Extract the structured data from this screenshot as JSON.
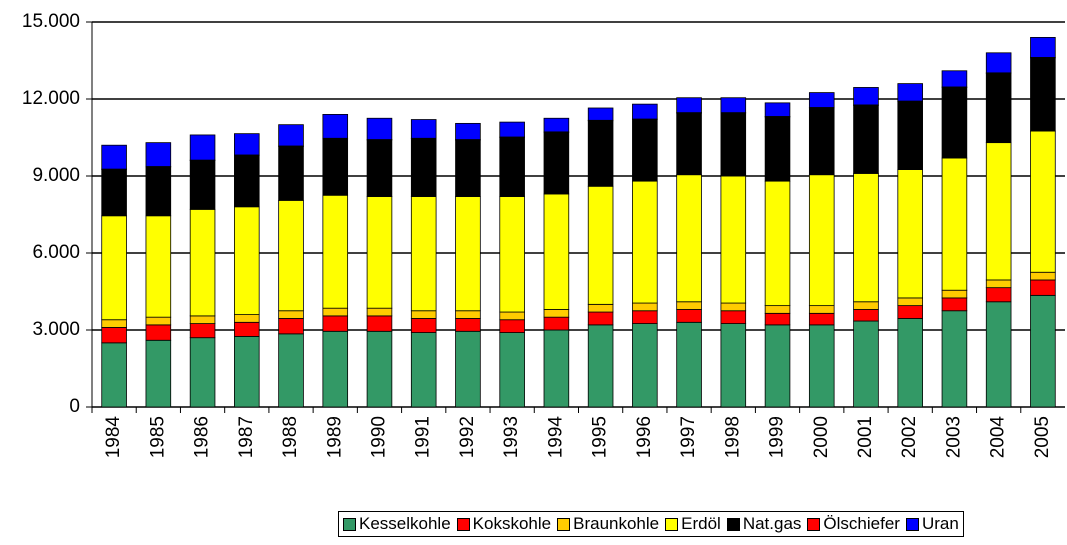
{
  "chart_data": {
    "type": "stacked_bar",
    "categories": [
      "1984",
      "1985",
      "1986",
      "1987",
      "1988",
      "1989",
      "1990",
      "1991",
      "1992",
      "1993",
      "1994",
      "1995",
      "1996",
      "1997",
      "1998",
      "1999",
      "2000",
      "2001",
      "2002",
      "2003",
      "2004",
      "2005"
    ],
    "series": [
      {
        "name": "Kesselkohle",
        "color": "#339966",
        "values": [
          2500,
          2600,
          2700,
          2750,
          2850,
          2950,
          2950,
          2900,
          2950,
          2900,
          3000,
          3200,
          3250,
          3300,
          3250,
          3200,
          3200,
          3350,
          3450,
          3750,
          4100,
          4350
        ]
      },
      {
        "name": "Kokskohle",
        "color": "#ff0000",
        "values": [
          600,
          600,
          550,
          550,
          600,
          600,
          600,
          550,
          500,
          500,
          500,
          500,
          500,
          500,
          500,
          450,
          450,
          450,
          500,
          500,
          550,
          600
        ]
      },
      {
        "name": "Braunkohle",
        "color": "#ffcc00",
        "values": [
          300,
          300,
          300,
          300,
          300,
          300,
          300,
          300,
          300,
          300,
          300,
          300,
          300,
          300,
          300,
          300,
          300,
          300,
          300,
          300,
          300,
          300
        ]
      },
      {
        "name": "Erdöl",
        "color": "#ffff00",
        "values": [
          4050,
          3950,
          4150,
          4200,
          4300,
          4400,
          4350,
          4450,
          4450,
          4500,
          4500,
          4600,
          4750,
          4950,
          4950,
          4850,
          5100,
          5000,
          5000,
          5150,
          5350,
          5500
        ]
      },
      {
        "name": "Nat.gas",
        "color": "#000000",
        "values": [
          1800,
          1900,
          1900,
          2000,
          2100,
          2200,
          2200,
          2250,
          2200,
          2300,
          2400,
          2550,
          2400,
          2400,
          2450,
          2500,
          2600,
          2650,
          2650,
          2750,
          2700,
          2850
        ]
      },
      {
        "name": "Ölschiefer",
        "color": "#ff0000",
        "values": [
          20,
          20,
          20,
          20,
          20,
          20,
          20,
          20,
          20,
          20,
          20,
          20,
          20,
          20,
          20,
          20,
          20,
          20,
          20,
          20,
          20,
          20
        ]
      },
      {
        "name": "Uran",
        "color": "#0000ff",
        "values": [
          930,
          930,
          980,
          830,
          830,
          930,
          830,
          730,
          630,
          580,
          530,
          480,
          580,
          580,
          580,
          530,
          580,
          680,
          680,
          630,
          780,
          780
        ]
      }
    ],
    "ylim": [
      0,
      15000
    ],
    "yticks": [
      0,
      {
        "value": 3000,
        "label": "3.000"
      },
      {
        "value": 6000,
        "label": "6.000"
      },
      {
        "value": 9000,
        "label": "9.000"
      },
      {
        "value": 12000,
        "label": "12.000"
      },
      {
        "value": 15000,
        "label": "15.000"
      }
    ],
    "grid": true
  }
}
